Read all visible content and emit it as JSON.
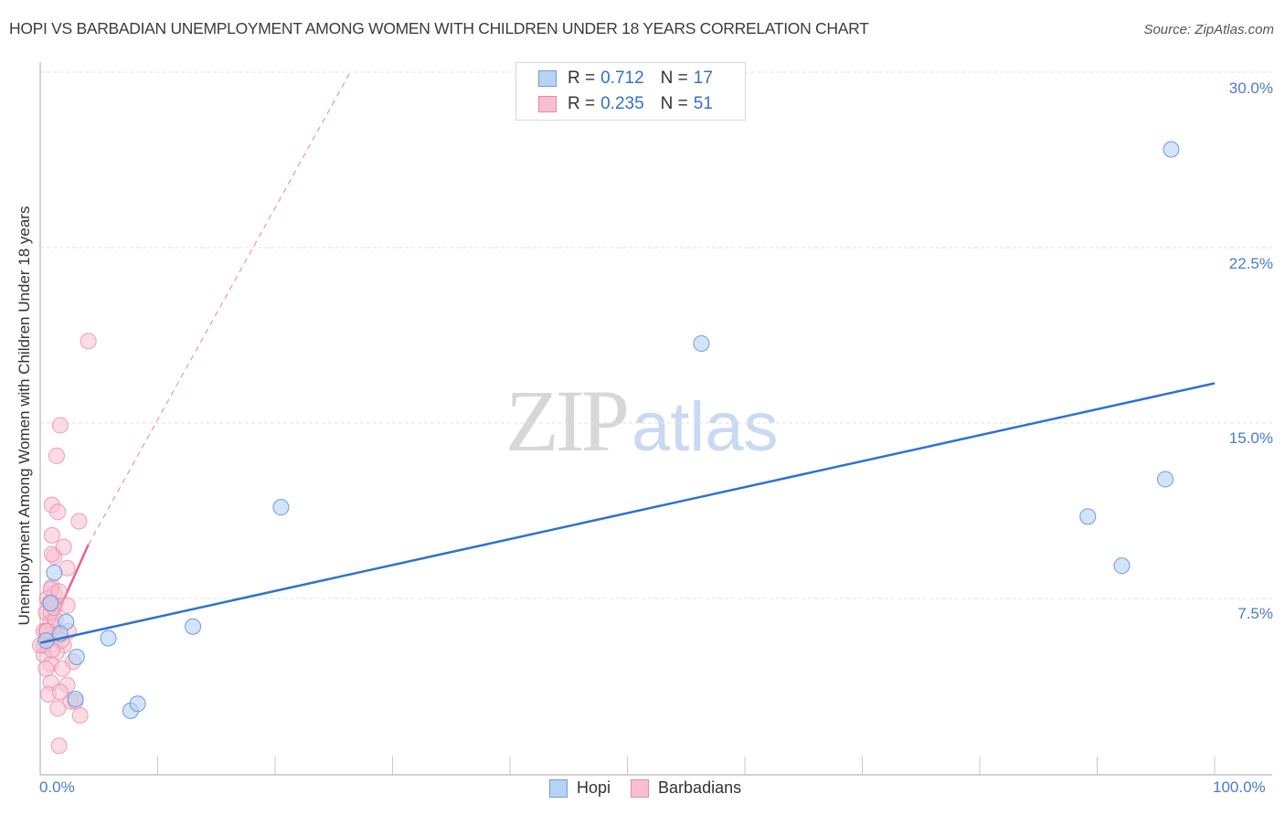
{
  "header": {
    "title": "HOPI VS BARBADIAN UNEMPLOYMENT AMONG WOMEN WITH CHILDREN UNDER 18 YEARS CORRELATION CHART",
    "source": "Source: ZipAtlas.com"
  },
  "watermark": {
    "zip": "ZIP",
    "atlas": "atlas"
  },
  "legend_top": {
    "rows": [
      {
        "r_label": "R =",
        "r_value": "0.712",
        "n_label": "N =",
        "n_value": "17",
        "series": "Hopi"
      },
      {
        "r_label": "R =",
        "r_value": "0.235",
        "n_label": "N =",
        "n_value": "51",
        "series": "Barbadians"
      }
    ]
  },
  "legend_bottom": {
    "items": [
      "Hopi",
      "Barbadians"
    ]
  },
  "axes": {
    "ylabel": "Unemployment Among Women with Children Under 18 years",
    "yticks": [
      "30.0%",
      "22.5%",
      "15.0%",
      "7.5%"
    ],
    "xticks": [
      "0.0%",
      "100.0%"
    ]
  },
  "colors": {
    "hopi_fill": "#b8d2f3",
    "hopi_stroke": "#6e9bdc",
    "hopi_line": "#2f72d0",
    "barb_fill": "#f8bfd0",
    "barb_stroke": "#e88aa8",
    "barb_line": "#e8628c",
    "tick_text": "#4a7cc9",
    "grid": "#e2e2e2"
  },
  "chart_data": {
    "type": "scatter",
    "title": "HOPI VS BARBADIAN UNEMPLOYMENT AMONG WOMEN WITH CHILDREN UNDER 18 YEARS CORRELATION CHART",
    "xlabel": "",
    "ylabel": "Unemployment Among Women with Children Under 18 years",
    "xlim": [
      0,
      100
    ],
    "ylim": [
      0,
      30
    ],
    "x_tick_labels": [
      "0.0%",
      "100.0%"
    ],
    "y_tick_labels": [
      "7.5%",
      "15.0%",
      "22.5%",
      "30.0%"
    ],
    "y_ticks": [
      7.5,
      15.0,
      22.5,
      30.0
    ],
    "grid": true,
    "legend_position": "top-center and bottom-center",
    "series": [
      {
        "name": "Hopi",
        "R": 0.712,
        "N": 17,
        "points": [
          [
            96.3,
            26.7
          ],
          [
            56.3,
            18.4
          ],
          [
            20.5,
            11.4
          ],
          [
            89.2,
            11.0
          ],
          [
            95.8,
            12.6
          ],
          [
            92.1,
            8.9
          ],
          [
            13.0,
            6.3
          ],
          [
            5.8,
            5.8
          ],
          [
            3.1,
            5.0
          ],
          [
            1.2,
            8.6
          ],
          [
            2.2,
            6.5
          ],
          [
            1.7,
            6.0
          ],
          [
            7.7,
            2.7
          ],
          [
            8.3,
            3.0
          ],
          [
            3.0,
            3.2
          ],
          [
            0.9,
            7.3
          ],
          [
            0.5,
            5.7
          ]
        ],
        "trend": {
          "x": [
            0,
            100
          ],
          "y": [
            5.6,
            16.7
          ],
          "style": "solid"
        }
      },
      {
        "name": "Barbadians",
        "R": 0.235,
        "N": 51,
        "points": [
          [
            4.1,
            18.5
          ],
          [
            1.7,
            14.9
          ],
          [
            1.4,
            13.6
          ],
          [
            1.0,
            11.5
          ],
          [
            1.5,
            11.2
          ],
          [
            1.0,
            10.2
          ],
          [
            1.2,
            9.3
          ],
          [
            1.0,
            9.4
          ],
          [
            2.0,
            9.7
          ],
          [
            3.3,
            10.8
          ],
          [
            1.0,
            8.0
          ],
          [
            2.3,
            8.8
          ],
          [
            1.2,
            7.7
          ],
          [
            0.6,
            7.5
          ],
          [
            0.9,
            7.9
          ],
          [
            1.1,
            7.3
          ],
          [
            1.6,
            7.8
          ],
          [
            2.3,
            7.2
          ],
          [
            0.5,
            6.9
          ],
          [
            0.9,
            6.5
          ],
          [
            0.3,
            6.1
          ],
          [
            0.6,
            5.7
          ],
          [
            1.1,
            6.3
          ],
          [
            1.6,
            5.9
          ],
          [
            2.0,
            5.5
          ],
          [
            1.4,
            5.2
          ],
          [
            0.3,
            5.1
          ],
          [
            0.9,
            4.7
          ],
          [
            2.4,
            6.1
          ],
          [
            2.8,
            4.8
          ],
          [
            1.9,
            4.5
          ],
          [
            0.9,
            3.9
          ],
          [
            2.3,
            3.8
          ],
          [
            0.7,
            3.4
          ],
          [
            1.5,
            2.8
          ],
          [
            2.6,
            3.1
          ],
          [
            3.0,
            3.1
          ],
          [
            3.4,
            2.5
          ],
          [
            1.6,
            1.2
          ],
          [
            0.3,
            5.5
          ],
          [
            0.5,
            6.1
          ],
          [
            0.9,
            6.9
          ],
          [
            1.3,
            6.6
          ],
          [
            1.8,
            5.7
          ],
          [
            1.0,
            5.3
          ],
          [
            0.5,
            4.5
          ],
          [
            0.0,
            5.5
          ],
          [
            1.2,
            7.1
          ],
          [
            0.6,
            6.1
          ],
          [
            0.8,
            7.3
          ],
          [
            1.7,
            3.5
          ]
        ],
        "trend": {
          "x": [
            0,
            4.1,
            26.4
          ],
          "y": [
            5.2,
            9.8,
            30.0
          ],
          "style": "solid then dashed"
        }
      }
    ]
  }
}
